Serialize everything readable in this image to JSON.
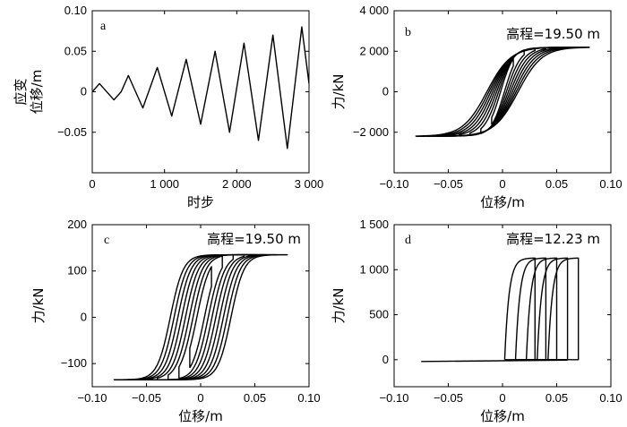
{
  "chart_data": [
    {
      "type": "line",
      "panel": "a",
      "xlabel": "时步",
      "ylabel": "应变\n位移/m",
      "xlim": [
        0,
        3000
      ],
      "ylim": [
        -0.1,
        0.1
      ],
      "xticks": [
        0,
        1000,
        2000,
        3000
      ],
      "xtick_labels": [
        "0",
        "1 000",
        "2 000",
        "3 000"
      ],
      "yticks": [
        -0.05,
        0,
        0.05,
        0.1
      ],
      "ytick_labels": [
        "-0.05",
        "0",
        "0.05",
        "0.10"
      ],
      "x": [
        0,
        100,
        300,
        400,
        500,
        700,
        900,
        1100,
        1300,
        1500,
        1700,
        1900,
        2100,
        2300,
        2500,
        2700,
        2900,
        3000
      ],
      "y": [
        0,
        0.01,
        -0.01,
        0,
        0.02,
        -0.02,
        0.03,
        -0.03,
        0.04,
        -0.04,
        0.05,
        -0.05,
        0.06,
        -0.06,
        0.07,
        -0.07,
        0.08,
        0.01
      ]
    },
    {
      "type": "line",
      "panel": "b",
      "annotation": "高程=19.50 m",
      "xlabel": "位移/m",
      "ylabel": "力/kN",
      "xlim": [
        -0.1,
        0.1
      ],
      "ylim": [
        -4000,
        4000
      ],
      "xticks": [
        -0.1,
        -0.05,
        0,
        0.05,
        0.1
      ],
      "xtick_labels": [
        "-0.10",
        "-0.05",
        "0",
        "0.05",
        "0.10"
      ],
      "yticks": [
        -2000,
        0,
        2000,
        4000
      ],
      "ytick_labels": [
        "-2 000",
        "0",
        "2 000",
        "4 000"
      ],
      "loop_amplitudes": [
        0.01,
        0.02,
        0.03,
        0.04,
        0.05,
        0.06,
        0.07,
        0.08
      ],
      "max_force": 2200,
      "min_force": -2200
    },
    {
      "type": "line",
      "panel": "c",
      "annotation": "高程=19.50 m",
      "xlabel": "位移/m",
      "ylabel": "力/kN",
      "xlim": [
        -0.1,
        0.1
      ],
      "ylim": [
        -150,
        200
      ],
      "xticks": [
        -0.1,
        -0.05,
        0,
        0.05,
        0.1
      ],
      "xtick_labels": [
        "-0.10",
        "-0.05",
        "0",
        "0.05",
        "0.10"
      ],
      "yticks": [
        -100,
        0,
        100,
        200
      ],
      "ytick_labels": [
        "-100",
        "0",
        "100",
        "200"
      ],
      "loop_amplitudes": [
        0.01,
        0.02,
        0.03,
        0.04,
        0.05,
        0.06,
        0.07,
        0.08
      ],
      "max_force": 135,
      "min_force": -135
    },
    {
      "type": "line",
      "panel": "d",
      "annotation": "高程=12.23 m",
      "xlabel": "位移/m",
      "ylabel": "力/kN",
      "xlim": [
        -0.1,
        0.1
      ],
      "ylim": [
        -300,
        1500
      ],
      "xticks": [
        -0.1,
        -0.05,
        0,
        0.05,
        0.1
      ],
      "xtick_labels": [
        "-0.10",
        "-0.05",
        "0",
        "0.05",
        "0.10"
      ],
      "yticks": [
        0,
        500,
        1000,
        1500
      ],
      "ytick_labels": [
        "0",
        "500",
        "1 000",
        "1 500"
      ],
      "loop_amplitudes": [
        0.03,
        0.04,
        0.05,
        0.06,
        0.07
      ],
      "max_force": 1130,
      "baseline_left": -0.075
    }
  ]
}
